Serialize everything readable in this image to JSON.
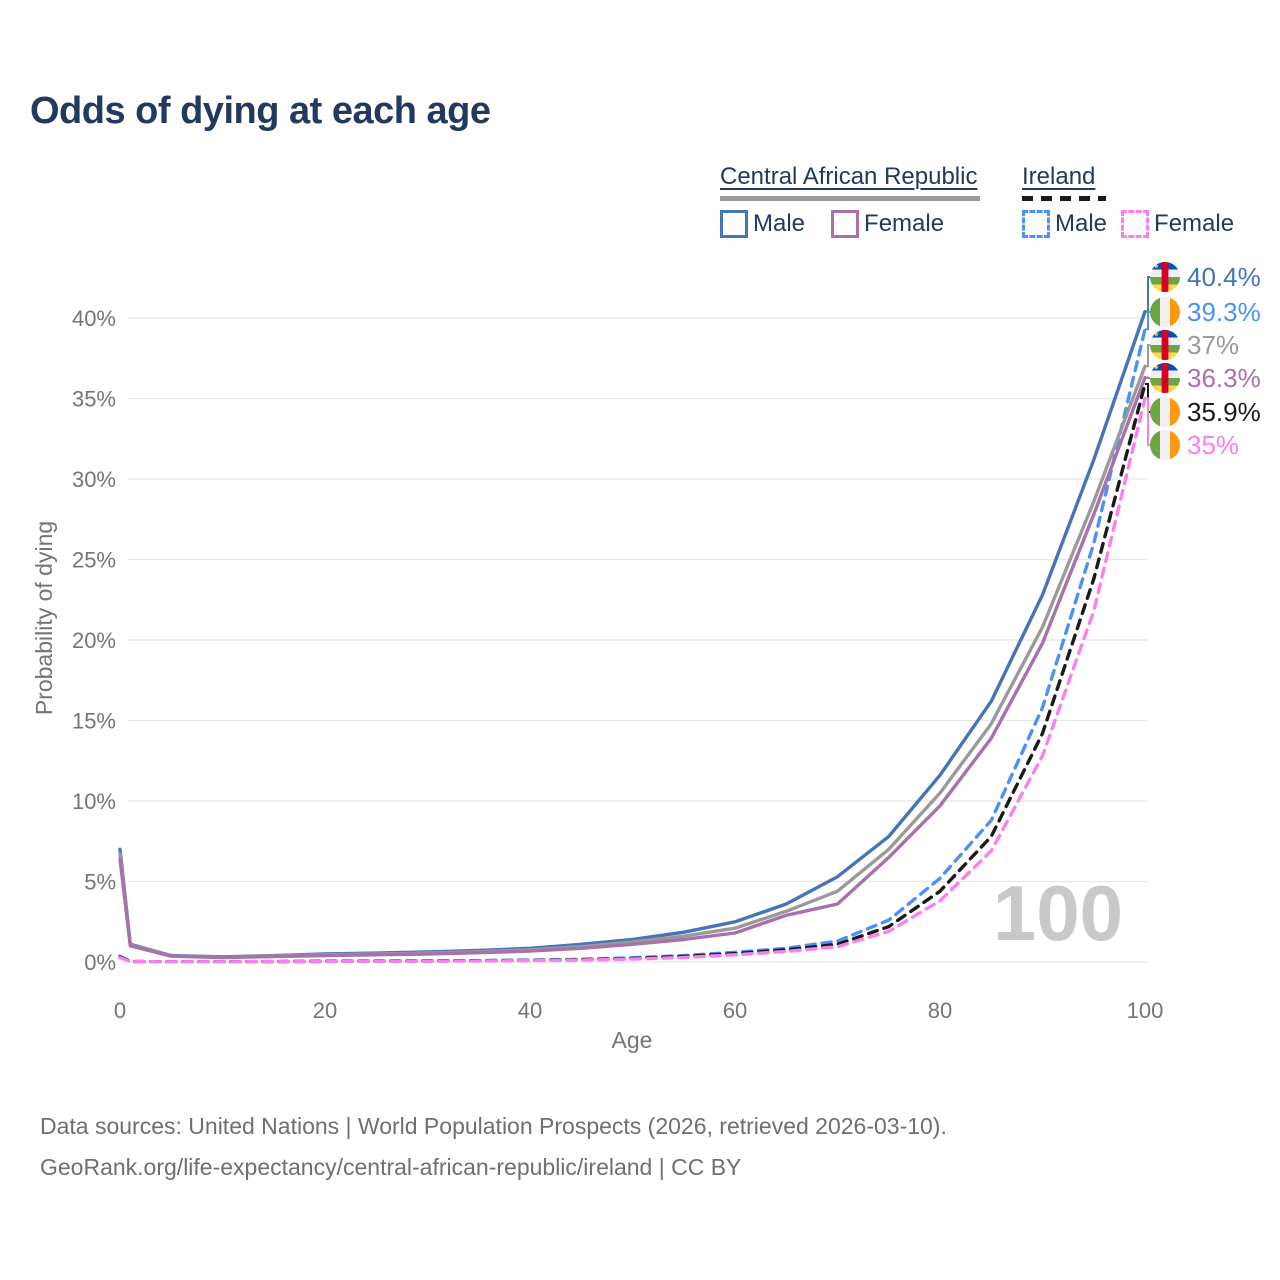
{
  "title": "Odds of dying at each age",
  "legend": {
    "groups": [
      {
        "label": "Central African Republic",
        "line_style": "solid",
        "items": [
          {
            "label": "Male"
          },
          {
            "label": "Female"
          }
        ]
      },
      {
        "label": "Ireland",
        "line_style": "dashed",
        "items": [
          {
            "label": "Male"
          },
          {
            "label": "Female"
          }
        ]
      }
    ]
  },
  "colors": {
    "title_text": "#213a5e",
    "legend_text": "#213a5e",
    "axis_text": "#757575",
    "gridline": "#e7e7e7",
    "watermark": "#c9c9c9",
    "source_text": "#6f6f6f",
    "car_male": "#4574b9",
    "car_female": "#a970ae",
    "car_both": "#9a9a9a",
    "ireland_male": "#4b92f5",
    "ireland_female": "#fb80ef",
    "ireland_both": "#1a1a1a"
  },
  "chart_data": {
    "type": "line",
    "title": "Odds of dying at each age",
    "xlabel": "Age",
    "ylabel": "Probability of dying",
    "xlim": [
      0,
      100
    ],
    "ylim": [
      0,
      43
    ],
    "xticks": [
      0,
      20,
      40,
      60,
      80,
      100
    ],
    "yticks": [
      0,
      5,
      10,
      15,
      20,
      25,
      30,
      35,
      40
    ],
    "grid": "horizontal",
    "legend_position": "top-right",
    "watermark": "100",
    "x": [
      0,
      1,
      5,
      10,
      15,
      20,
      25,
      30,
      35,
      40,
      45,
      50,
      55,
      60,
      65,
      70,
      75,
      80,
      85,
      90,
      95,
      100
    ],
    "series": [
      {
        "id": "car-male",
        "name": "Central African Republic Male",
        "country": "Central African Republic",
        "sex": "Male",
        "color": "#4574b9",
        "dash": "solid",
        "flag": "cf",
        "flag_icon": "central-african-republic-flag-icon",
        "end_label": "40.4%",
        "values": [
          7.0,
          1.1,
          0.4,
          0.32,
          0.4,
          0.5,
          0.55,
          0.62,
          0.72,
          0.85,
          1.1,
          1.4,
          1.85,
          2.5,
          3.6,
          5.3,
          7.8,
          11.6,
          16.2,
          22.8,
          31.2,
          40.4
        ]
      },
      {
        "id": "ireland-male",
        "name": "Ireland Male",
        "country": "Ireland",
        "sex": "Male",
        "color": "#4b92f5",
        "dash": "dashed",
        "flag": "ie",
        "flag_icon": "ireland-flag-icon",
        "end_label": "39.3%",
        "values": [
          0.35,
          0.03,
          0.01,
          0.01,
          0.03,
          0.06,
          0.07,
          0.08,
          0.09,
          0.12,
          0.17,
          0.26,
          0.4,
          0.6,
          0.85,
          1.3,
          2.6,
          5.2,
          8.8,
          15.8,
          26.0,
          39.3
        ]
      },
      {
        "id": "car-both",
        "name": "Central African Republic (both sexes)",
        "country": "Central African Republic",
        "sex": "Both",
        "color": "#9a9a9a",
        "dash": "solid",
        "flag": "cf",
        "flag_icon": "central-african-republic-flag-icon",
        "end_label": "37%",
        "values": [
          6.7,
          1.05,
          0.38,
          0.3,
          0.37,
          0.45,
          0.5,
          0.56,
          0.64,
          0.76,
          0.95,
          1.25,
          1.6,
          2.1,
          3.15,
          4.4,
          7.0,
          10.5,
          14.8,
          20.8,
          28.6,
          37.0
        ]
      },
      {
        "id": "car-female",
        "name": "Central African Republic Female",
        "country": "Central African Republic",
        "sex": "Female",
        "color": "#a970ae",
        "dash": "solid",
        "flag": "cf",
        "flag_icon": "central-african-republic-flag-icon",
        "end_label": "36.3%",
        "values": [
          6.4,
          1.0,
          0.36,
          0.28,
          0.34,
          0.4,
          0.45,
          0.5,
          0.58,
          0.68,
          0.85,
          1.1,
          1.4,
          1.8,
          2.9,
          3.6,
          6.5,
          9.7,
          13.9,
          19.8,
          27.8,
          36.3
        ]
      },
      {
        "id": "ireland-both",
        "name": "Ireland (both sexes)",
        "country": "Ireland",
        "sex": "Both",
        "color": "#1a1a1a",
        "dash": "dashed",
        "flag": "ie",
        "flag_icon": "ireland-flag-icon",
        "end_label": "35.9%",
        "values": [
          0.31,
          0.03,
          0.01,
          0.01,
          0.02,
          0.04,
          0.05,
          0.06,
          0.08,
          0.1,
          0.14,
          0.22,
          0.34,
          0.52,
          0.75,
          1.1,
          2.2,
          4.4,
          7.8,
          14.2,
          23.8,
          35.9
        ]
      },
      {
        "id": "ireland-female",
        "name": "Ireland Female",
        "country": "Ireland",
        "sex": "Female",
        "color": "#fb80ef",
        "dash": "dashed",
        "flag": "ie",
        "flag_icon": "ireland-flag-icon",
        "end_label": "35%",
        "values": [
          0.27,
          0.02,
          0.01,
          0.01,
          0.02,
          0.03,
          0.04,
          0.05,
          0.06,
          0.09,
          0.12,
          0.18,
          0.28,
          0.45,
          0.65,
          0.95,
          1.9,
          3.8,
          6.9,
          12.8,
          21.8,
          35.0
        ]
      }
    ]
  },
  "source": {
    "line1": "Data sources: United Nations | World Population Prospects (2026, retrieved 2026-03-10).",
    "line2": "GeoRank.org/life-expectancy/central-african-republic/ireland | CC BY"
  }
}
